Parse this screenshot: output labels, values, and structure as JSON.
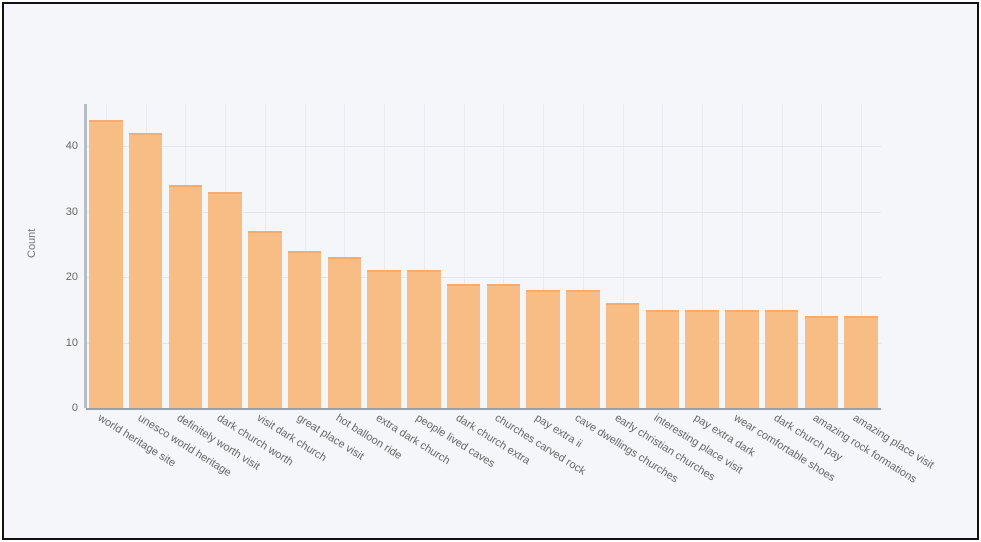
{
  "chart_data": {
    "type": "bar",
    "title": "",
    "xlabel": "",
    "ylabel": "Count",
    "ylim": [
      0,
      46
    ],
    "yticks": [
      0,
      10,
      20,
      30,
      40
    ],
    "grid": true,
    "legend": null,
    "bar_color": "#f8bb7f",
    "categories": [
      "world heritage site",
      "unesco world heritage",
      "definitely worth visit",
      "dark church worth",
      "visit dark church",
      "great place visit",
      "hot balloon ride",
      "extra dark church",
      "people lived caves",
      "dark church extra",
      "churches carved rock",
      "pay extra ii",
      "cave dwellings churches",
      "early christian churches",
      "interesting place visit",
      "pay extra dark",
      "wear comfortable shoes",
      "dark church pay",
      "amazing rock formations",
      "amazing place visit"
    ],
    "values": [
      44,
      42,
      34,
      33,
      27,
      24,
      23,
      21,
      21,
      19,
      19,
      18,
      18,
      16,
      15,
      15,
      15,
      15,
      14,
      14
    ]
  },
  "axis": {
    "ylabel": "Count",
    "yticks": [
      "0",
      "10",
      "20",
      "30",
      "40"
    ]
  }
}
